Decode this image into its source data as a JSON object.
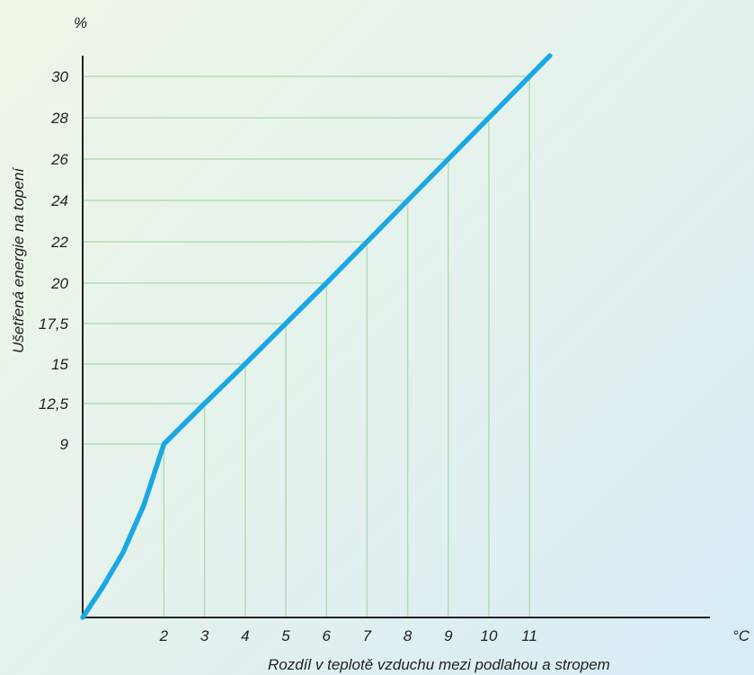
{
  "chart_data": {
    "type": "line",
    "xlabel": "Rozdíl v teplotě vzduchu mezi podlahou a stropem",
    "ylabel": "Ušetřená energie na topení",
    "x_unit": "°C",
    "y_unit": "%",
    "x_ticks": [
      {
        "value": 2,
        "label": "2"
      },
      {
        "value": 3,
        "label": "3"
      },
      {
        "value": 4,
        "label": "4"
      },
      {
        "value": 5,
        "label": "5"
      },
      {
        "value": 6,
        "label": "6"
      },
      {
        "value": 7,
        "label": "7"
      },
      {
        "value": 8,
        "label": "8"
      },
      {
        "value": 9,
        "label": "9"
      },
      {
        "value": 10,
        "label": "10"
      },
      {
        "value": 11,
        "label": "11"
      }
    ],
    "y_ticks": [
      {
        "value": 9,
        "label": "9"
      },
      {
        "value": 12.5,
        "label": "12,5"
      },
      {
        "value": 15,
        "label": "15"
      },
      {
        "value": 17.5,
        "label": "17,5"
      },
      {
        "value": 20,
        "label": "20"
      },
      {
        "value": 22,
        "label": "22"
      },
      {
        "value": 24,
        "label": "24"
      },
      {
        "value": 26,
        "label": "26"
      },
      {
        "value": 28,
        "label": "28"
      },
      {
        "value": 30,
        "label": "30"
      }
    ],
    "series": [
      {
        "points": [
          {
            "x": 0,
            "y": 0
          },
          {
            "x": 0.5,
            "y": 1.6
          },
          {
            "x": 1,
            "y": 3.4
          },
          {
            "x": 1.5,
            "y": 5.8
          },
          {
            "x": 2,
            "y": 9
          },
          {
            "x": 3,
            "y": 12.5
          },
          {
            "x": 4,
            "y": 15
          },
          {
            "x": 5,
            "y": 17.5
          },
          {
            "x": 6,
            "y": 20
          },
          {
            "x": 7,
            "y": 22
          },
          {
            "x": 8,
            "y": 24
          },
          {
            "x": 9,
            "y": 26
          },
          {
            "x": 10,
            "y": 28
          },
          {
            "x": 11,
            "y": 30
          },
          {
            "x": 11.5,
            "y": 31
          }
        ]
      }
    ],
    "grid": "guide lines from curve points to axes",
    "colors": {
      "line": "#19a8e4",
      "grid": "#b4dcb4",
      "axis": "#222222"
    }
  }
}
